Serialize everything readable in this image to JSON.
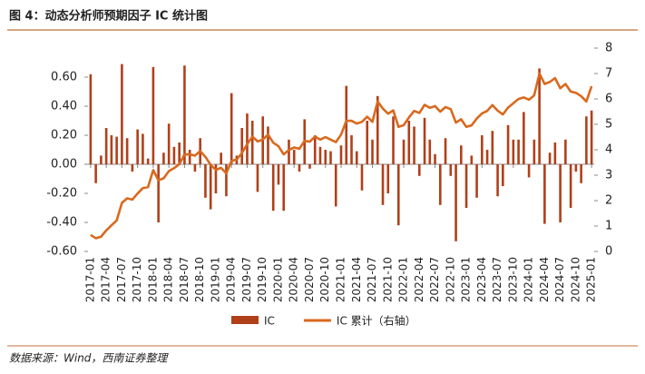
{
  "chart_data": {
    "type": "bar-line",
    "title": "图 4：动态分析师预期因子 IC 统计图",
    "source": "数据来源：Wind，西南证券整理",
    "categories": [
      "2017-01",
      null,
      null,
      "2017-04",
      null,
      null,
      "2017-07",
      null,
      null,
      "2017-10",
      null,
      null,
      "2018-01",
      null,
      null,
      "2018-04",
      null,
      null,
      "2018-07",
      null,
      null,
      "2018-10",
      null,
      null,
      "2019-01",
      null,
      null,
      "2019-04",
      null,
      null,
      "2019-07",
      null,
      null,
      "2019-10",
      null,
      null,
      "2020-01",
      null,
      null,
      "2020-04",
      null,
      null,
      "2020-07",
      null,
      null,
      "2020-10",
      null,
      null,
      "2021-01",
      null,
      null,
      "2021-04",
      null,
      null,
      "2021-07",
      null,
      null,
      "2021-10",
      null,
      null,
      "2022-01",
      null,
      null,
      "2022-04",
      null,
      null,
      "2022-07",
      null,
      null,
      "2022-10",
      null,
      null,
      "2023-01",
      null,
      null,
      "2023-04",
      null,
      null,
      "2023-07",
      null,
      null,
      "2023-10",
      null,
      null,
      "2024-01",
      null,
      null,
      "2024-04",
      null,
      null,
      "2024-07",
      null,
      null,
      "2024-10",
      null,
      null,
      "2025-01"
    ],
    "series": [
      {
        "name": "IC",
        "kind": "bar",
        "color": "#b0401a",
        "axis": "y",
        "values": [
          0.62,
          -0.13,
          0.06,
          0.25,
          0.2,
          0.19,
          0.69,
          0.18,
          -0.05,
          0.24,
          0.21,
          0.04,
          0.67,
          -0.4,
          0.08,
          0.28,
          0.12,
          0.15,
          0.68,
          0.1,
          -0.05,
          0.18,
          -0.23,
          -0.31,
          -0.2,
          0.08,
          -0.22,
          0.49,
          0.06,
          0.25,
          0.35,
          0.3,
          -0.19,
          0.33,
          0.26,
          -0.32,
          -0.14,
          -0.32,
          0.17,
          0.1,
          -0.05,
          0.31,
          -0.03,
          0.2,
          0.12,
          0.1,
          0.09,
          -0.29,
          0.13,
          0.54,
          0.2,
          0.09,
          -0.18,
          0.3,
          0.17,
          0.47,
          -0.28,
          -0.2,
          0.33,
          -0.42,
          0.17,
          0.3,
          0.26,
          -0.08,
          0.32,
          0.17,
          0.07,
          -0.28,
          0.18,
          -0.08,
          -0.53,
          0.13,
          -0.3,
          0.06,
          -0.23,
          0.2,
          0.1,
          0.23,
          -0.22,
          -0.15,
          0.27,
          0.17,
          0.17,
          0.36,
          -0.09,
          0.17,
          0.66,
          -0.41,
          0.08,
          0.15,
          -0.4,
          0.17,
          -0.3,
          -0.05,
          -0.13,
          0.33,
          0.37
        ]
      },
      {
        "name": "IC 累计（右轴）",
        "kind": "line",
        "color": "#d9691e",
        "axis": "y2",
        "values": [
          0.65,
          0.52,
          0.58,
          0.83,
          1.03,
          1.22,
          1.91,
          2.09,
          2.04,
          2.28,
          2.49,
          2.53,
          3.2,
          2.8,
          2.88,
          3.16,
          3.28,
          3.43,
          3.82,
          3.82,
          3.77,
          3.95,
          3.72,
          3.41,
          3.21,
          3.29,
          3.07,
          3.56,
          3.62,
          3.87,
          4.22,
          4.52,
          4.33,
          4.4,
          4.6,
          4.28,
          4.14,
          3.82,
          3.99,
          4.09,
          4.04,
          4.35,
          4.32,
          4.52,
          4.4,
          4.5,
          4.4,
          4.3,
          4.6,
          5.14,
          5.14,
          5.03,
          5.1,
          5.3,
          5.1,
          5.9,
          5.62,
          5.42,
          5.55,
          4.9,
          4.97,
          5.27,
          5.53,
          5.45,
          5.77,
          5.65,
          5.72,
          5.5,
          5.68,
          5.6,
          5.07,
          5.2,
          4.9,
          4.96,
          5.23,
          5.43,
          5.53,
          5.76,
          5.54,
          5.39,
          5.66,
          5.83,
          6.0,
          6.06,
          5.97,
          6.14,
          7.0,
          6.59,
          6.67,
          6.82,
          6.42,
          6.59,
          6.29,
          6.24,
          6.11,
          5.9,
          6.5
        ]
      }
    ],
    "ylim": [
      -0.6,
      0.8
    ],
    "yticks": [
      {
        "value": -0.6,
        "label": "-0.60"
      },
      {
        "value": -0.4,
        "label": "-0.40"
      },
      {
        "value": -0.2,
        "label": "-0.20"
      },
      {
        "value": 0,
        "label": "0.00"
      },
      {
        "value": 0.2,
        "label": "0.20"
      },
      {
        "value": 0.4,
        "label": "0.40"
      },
      {
        "value": 0.6,
        "label": "0.60"
      }
    ],
    "y2lim": [
      0,
      8
    ],
    "y2ticks": [
      0,
      1,
      2,
      3,
      4,
      5,
      6,
      7,
      8
    ],
    "legend": "bottom"
  }
}
